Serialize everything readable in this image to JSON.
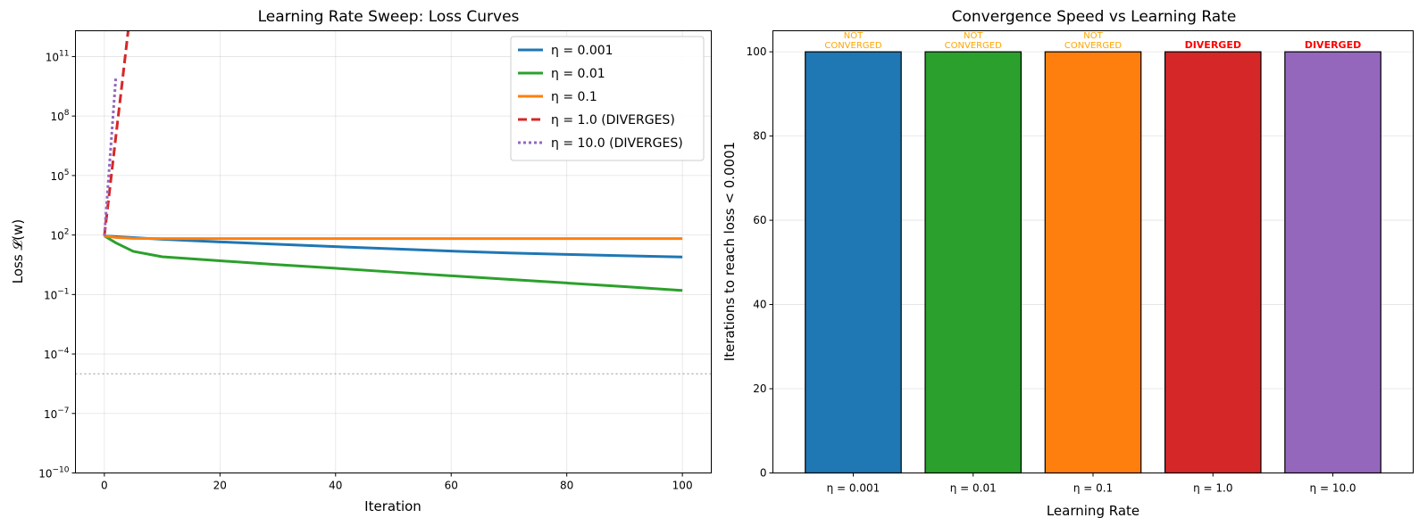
{
  "chart_data": [
    {
      "type": "line",
      "title": "Learning Rate Sweep: Loss Curves",
      "xlabel": "Iteration",
      "ylabel": "Loss 𝓛(w)",
      "yscale": "log",
      "xlim": [
        -5,
        105
      ],
      "ylim": [
        1e-10,
        2000000000000.0
      ],
      "xticks": [
        0,
        20,
        40,
        60,
        80,
        100
      ],
      "yticks": [
        {
          "value": 1e-10,
          "base": "10",
          "exp": "−10"
        },
        {
          "value": 1e-07,
          "base": "10",
          "exp": "−7"
        },
        {
          "value": 0.0001,
          "base": "10",
          "exp": "−4"
        },
        {
          "value": 0.1,
          "base": "10",
          "exp": "−1"
        },
        {
          "value": 100,
          "base": "10",
          "exp": "2"
        },
        {
          "value": 100000.0,
          "base": "10",
          "exp": "5"
        },
        {
          "value": 100000000.0,
          "base": "10",
          "exp": "8"
        },
        {
          "value": 100000000000.0,
          "base": "10",
          "exp": "11"
        }
      ],
      "threshold": 1e-05,
      "grid": true,
      "legend_position": "top-right",
      "series": [
        {
          "name": "η = 0.001",
          "color": "#1f77b4",
          "dash": "solid",
          "x": [
            0,
            10,
            20,
            30,
            40,
            50,
            60,
            70,
            80,
            90,
            100
          ],
          "y": [
            90,
            61,
            45,
            34,
            26,
            20,
            15.5,
            12.5,
            10.5,
            9,
            7.8
          ]
        },
        {
          "name": "η = 0.01",
          "color": "#2ca02c",
          "dash": "solid",
          "x": [
            0,
            2,
            5,
            10,
            20,
            30,
            40,
            50,
            60,
            70,
            80,
            90,
            100
          ],
          "y": [
            90,
            40,
            15,
            8,
            5,
            3.2,
            2.1,
            1.35,
            0.88,
            0.58,
            0.38,
            0.25,
            0.16
          ]
        },
        {
          "name": "η = 0.1",
          "color": "#ff7f0e",
          "dash": "solid",
          "x": [
            0,
            2,
            5,
            10,
            100
          ],
          "y": [
            90,
            75,
            68,
            66,
            66
          ]
        },
        {
          "name": "η = 1.0 (DIVERGES)",
          "color": "#d62728",
          "dash": "dashed",
          "x": [
            0,
            1,
            2,
            3,
            4,
            5
          ],
          "y": [
            90,
            30000.0,
            10000000.0,
            3000000000.0,
            1000000000000.0,
            300000000000000.0
          ]
        },
        {
          "name": "η = 10.0 (DIVERGES)",
          "color": "#9467bd",
          "dash": "dotted",
          "x": [
            0,
            1,
            2
          ],
          "y": [
            90,
            1000000.0,
            10000000000.0
          ]
        }
      ]
    },
    {
      "type": "bar",
      "title": "Convergence Speed vs Learning Rate",
      "xlabel": "Learning Rate",
      "ylabel": "Iterations to reach loss < 0.0001",
      "ylim": [
        0,
        105
      ],
      "yticks": [
        0,
        20,
        40,
        60,
        80,
        100
      ],
      "grid": true,
      "categories": [
        "η = 0.001",
        "η = 0.01",
        "η = 0.1",
        "η = 1.0",
        "η = 10.0"
      ],
      "values": [
        100,
        100,
        100,
        100,
        100
      ],
      "colors": [
        "#1f77b4",
        "#2ca02c",
        "#ff7f0e",
        "#d62728",
        "#9467bd"
      ],
      "annotations": [
        {
          "lines": [
            "NOT",
            "CONVERGED"
          ],
          "color": "#ffa500",
          "bold": false
        },
        {
          "lines": [
            "NOT",
            "CONVERGED"
          ],
          "color": "#ffa500",
          "bold": false
        },
        {
          "lines": [
            "NOT",
            "CONVERGED"
          ],
          "color": "#ffa500",
          "bold": false
        },
        {
          "lines": [
            "DIVERGED"
          ],
          "color": "#ff0000",
          "bold": true
        },
        {
          "lines": [
            "DIVERGED"
          ],
          "color": "#ff0000",
          "bold": true
        }
      ]
    }
  ]
}
